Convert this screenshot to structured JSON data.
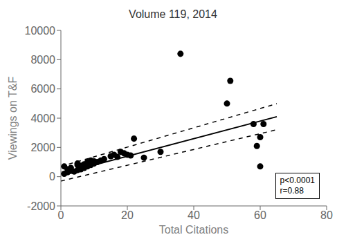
{
  "chart_data": {
    "type": "scatter",
    "title": "Volume 119, 2014",
    "xlabel": "Total Citations",
    "ylabel": "Viewings on T&F",
    "xlim": [
      0,
      80
    ],
    "ylim": [
      -2000,
      10000
    ],
    "xticks": [
      0,
      20,
      40,
      60,
      80
    ],
    "yticks": [
      -2000,
      0,
      2000,
      4000,
      6000,
      8000,
      10000
    ],
    "grid": false,
    "annotation": "p<0.0001\nr=0.88",
    "series": [
      {
        "type": "scatter",
        "color": "#000000",
        "marker": "circle",
        "x": [
          1,
          1,
          2,
          2,
          3,
          3,
          4,
          5,
          5,
          5,
          6,
          6,
          7,
          7,
          8,
          8,
          9,
          9,
          10,
          10,
          11,
          12,
          13,
          15,
          16,
          17,
          18,
          19,
          20,
          21,
          22,
          25,
          30,
          36,
          50,
          51,
          58,
          59,
          60,
          60,
          61
        ],
        "values": [
          200,
          700,
          300,
          500,
          400,
          600,
          350,
          450,
          800,
          900,
          500,
          750,
          600,
          850,
          700,
          1000,
          800,
          1100,
          900,
          1050,
          1000,
          1100,
          1200,
          1400,
          1500,
          1350,
          1700,
          1600,
          1500,
          1450,
          2600,
          1300,
          1700,
          8400,
          5000,
          6550,
          3600,
          2100,
          2700,
          700,
          3600
        ]
      },
      {
        "type": "line",
        "color": "#000000",
        "line_style": "solid",
        "x": [
          0,
          65
        ],
        "values": [
          200,
          4100
        ]
      },
      {
        "type": "line",
        "color": "#000000",
        "line_style": "dashed",
        "x": [
          0,
          65
        ],
        "values": [
          700,
          4990
        ]
      },
      {
        "type": "line",
        "color": "#000000",
        "line_style": "dashed",
        "x": [
          0,
          65
        ],
        "values": [
          -300,
          3210
        ]
      }
    ]
  }
}
